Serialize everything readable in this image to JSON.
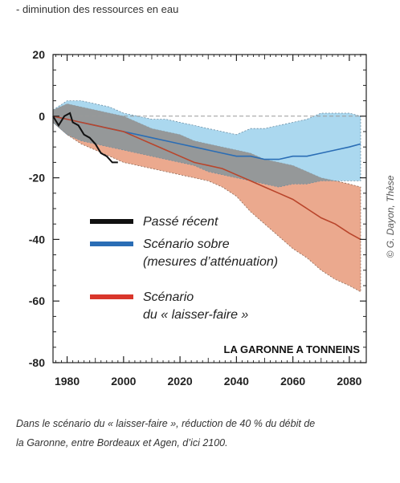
{
  "header": {
    "text": "- diminution des ressources en eau"
  },
  "caption": {
    "line1": "Dans le scénario du « laisser-faire », réduction de 40 % du débit de",
    "line2": "la Garonne, entre Bordeaux et Agen, d’ici 2100."
  },
  "chart_data": {
    "type": "line",
    "xlim": [
      1975,
      2086
    ],
    "ylim": [
      -80,
      20
    ],
    "xticks": [
      1980,
      2000,
      2020,
      2040,
      2060,
      2080
    ],
    "yticks": [
      20,
      0,
      -20,
      -40,
      -60,
      -80
    ],
    "reference_line": 0,
    "station_label": "LA GARONNE A TONNEINS",
    "credit": "© G. Dayon, Thèse",
    "legend": [
      {
        "label": "Passé récent",
        "color": "#111111"
      },
      {
        "label": "Scénario sobre",
        "label2": "(mesures d’atténuation)",
        "color": "#2a6db5"
      },
      {
        "label": "Scénario",
        "label2": "du « laisser-faire »",
        "color": "#d9362b"
      }
    ],
    "colors": {
      "past": "#111111",
      "sober_line": "#2a6db5",
      "sober_band": "#8fcbea",
      "laissez_line": "#b9452b",
      "laissez_band": "#e89a7a",
      "overlap_band": "#8f8a86"
    },
    "series": [
      {
        "id": "past",
        "x": [
          1975,
          1977,
          1979,
          1981,
          1982,
          1984,
          1986,
          1988,
          1990,
          1992,
          1994,
          1996,
          1998
        ],
        "y": [
          0,
          -3,
          0,
          1,
          -2,
          -3,
          -6,
          -7,
          -9,
          -12,
          -13,
          -15,
          -15
        ]
      },
      {
        "id": "sober",
        "x": [
          1975,
          1980,
          1985,
          1990,
          1995,
          2000,
          2005,
          2010,
          2015,
          2020,
          2025,
          2030,
          2035,
          2040,
          2045,
          2050,
          2055,
          2060,
          2065,
          2070,
          2075,
          2080,
          2084
        ],
        "y": [
          0,
          -1,
          -2,
          -3,
          -4,
          -5,
          -6,
          -7,
          -8,
          -9,
          -10,
          -11,
          -12,
          -13,
          -13,
          -14,
          -14,
          -13,
          -13,
          -12,
          -11,
          -10,
          -9
        ],
        "upper": [
          2,
          5,
          5,
          4,
          3,
          1,
          0,
          -1,
          -1,
          -2,
          -3,
          -4,
          -5,
          -6,
          -4,
          -4,
          -3,
          -2,
          -1,
          1,
          1,
          1,
          0
        ],
        "lower": [
          -2,
          -6,
          -8,
          -9,
          -10,
          -11,
          -12,
          -13,
          -14,
          -15,
          -16,
          -18,
          -19,
          -20,
          -21,
          -22,
          -23,
          -22,
          -22,
          -21,
          -21,
          -21,
          -21
        ]
      },
      {
        "id": "laissez",
        "x": [
          1975,
          1980,
          1985,
          1990,
          1995,
          2000,
          2005,
          2010,
          2015,
          2020,
          2025,
          2030,
          2035,
          2040,
          2045,
          2050,
          2055,
          2060,
          2065,
          2070,
          2075,
          2080,
          2084
        ],
        "y": [
          0,
          -1,
          -2,
          -3,
          -4,
          -5,
          -7,
          -9,
          -11,
          -13,
          -15,
          -16,
          -17,
          -19,
          -21,
          -23,
          -25,
          -27,
          -30,
          -33,
          -35,
          -38,
          -40
        ],
        "upper": [
          2,
          4,
          3,
          2,
          1,
          0,
          -2,
          -4,
          -5,
          -6,
          -8,
          -9,
          -10,
          -11,
          -12,
          -14,
          -15,
          -16,
          -18,
          -20,
          -21,
          -22,
          -23
        ],
        "lower": [
          -2,
          -6,
          -9,
          -11,
          -13,
          -15,
          -16,
          -17,
          -18,
          -19,
          -20,
          -21,
          -23,
          -26,
          -31,
          -35,
          -39,
          -43,
          -46,
          -50,
          -53,
          -55,
          -57
        ]
      }
    ]
  }
}
